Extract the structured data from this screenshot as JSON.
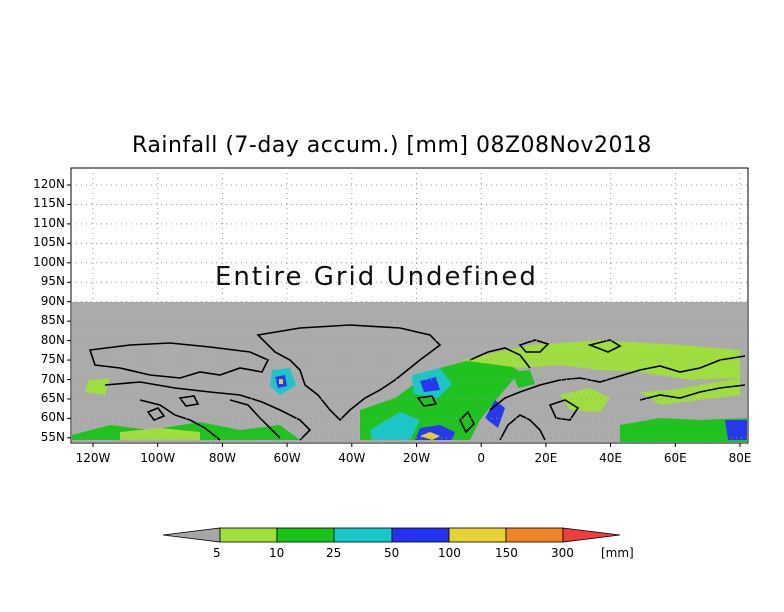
{
  "title": "Rainfall (7-day accum.) [mm] 08Z08Nov2018",
  "undefined_text": "Entire Grid Undefined",
  "lat_labels": [
    "120N",
    "115N",
    "110N",
    "105N",
    "100N",
    "95N",
    "90N",
    "85N",
    "80N",
    "75N",
    "70N",
    "65N",
    "60N",
    "55N"
  ],
  "lon_labels": [
    "120W",
    "100W",
    "80W",
    "60W",
    "40W",
    "20W",
    "0",
    "20E",
    "40E",
    "60E",
    "80E"
  ],
  "colorbar": {
    "labels": [
      "5",
      "10",
      "25",
      "50",
      "100",
      "150",
      "300"
    ],
    "unit": "[mm]",
    "colors": [
      "#a6a6a6",
      "#9fe03c",
      "#18c418",
      "#16c8c8",
      "#2232f0",
      "#e6d232",
      "#f08228",
      "#f03c3c"
    ]
  },
  "colors": {
    "undefined_gray": "#ababab",
    "coast": "#000000"
  }
}
